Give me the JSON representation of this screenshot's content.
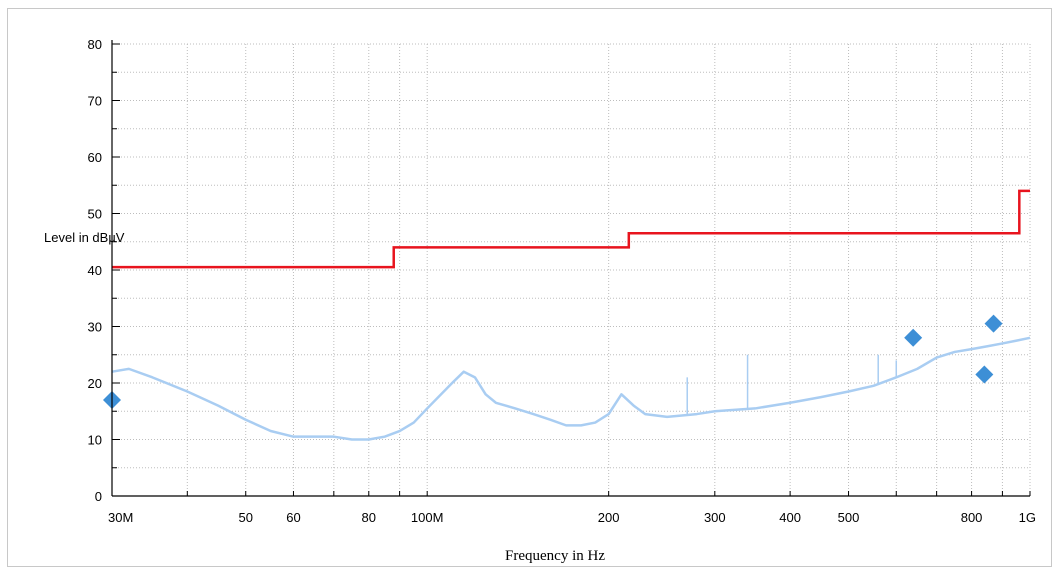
{
  "chart_data": {
    "type": "line",
    "title": "",
    "xlabel": "Frequency in Hz",
    "ylabel": "Level in dBµV",
    "x_scale": "log",
    "xlim": [
      30000000,
      1000000000
    ],
    "ylim": [
      0,
      80
    ],
    "grid": true,
    "x_ticks": [
      {
        "value": 30000000,
        "label": "30M"
      },
      {
        "value": 50000000,
        "label": "50"
      },
      {
        "value": 60000000,
        "label": "60"
      },
      {
        "value": 80000000,
        "label": "80"
      },
      {
        "value": 100000000,
        "label": "100M"
      },
      {
        "value": 200000000,
        "label": "200"
      },
      {
        "value": 300000000,
        "label": "300"
      },
      {
        "value": 400000000,
        "label": "400"
      },
      {
        "value": 500000000,
        "label": "500"
      },
      {
        "value": 800000000,
        "label": "800"
      },
      {
        "value": 1000000000,
        "label": "1G"
      }
    ],
    "y_ticks": [
      0,
      10,
      20,
      30,
      40,
      50,
      60,
      70,
      80
    ],
    "series": [
      {
        "kind": "limit",
        "color": "#e8141e",
        "x": [
          30000000,
          88000000,
          88000000,
          216000000,
          216000000,
          960000000,
          960000000,
          1000000000
        ],
        "y": [
          40.5,
          40.5,
          44,
          44,
          46.5,
          46.5,
          54,
          54
        ]
      },
      {
        "kind": "spectrum",
        "color": "#a9cdf2",
        "x": [
          30000000,
          32000000,
          35000000,
          40000000,
          45000000,
          50000000,
          55000000,
          60000000,
          65000000,
          70000000,
          75000000,
          80000000,
          85000000,
          90000000,
          95000000,
          100000000,
          110000000,
          115000000,
          120000000,
          125000000,
          130000000,
          140000000,
          150000000,
          160000000,
          170000000,
          180000000,
          190000000,
          200000000,
          210000000,
          220000000,
          230000000,
          250000000,
          280000000,
          300000000,
          350000000,
          400000000,
          450000000,
          500000000,
          550000000,
          600000000,
          650000000,
          700000000,
          750000000,
          800000000,
          850000000,
          900000000,
          950000000,
          1000000000
        ],
        "y": [
          22,
          22.5,
          21,
          18.5,
          16,
          13.5,
          11.5,
          10.5,
          10.5,
          10.5,
          10,
          10,
          10.5,
          11.5,
          13,
          15.5,
          20,
          22,
          21,
          18,
          16.5,
          15.5,
          14.5,
          13.5,
          12.5,
          12.5,
          13,
          14.5,
          18,
          16,
          14.5,
          14,
          14.5,
          15,
          15.5,
          16.5,
          17.5,
          18.5,
          19.5,
          21,
          22.5,
          24.5,
          25.5,
          26,
          26.5,
          27,
          27.5,
          28
        ]
      },
      {
        "kind": "markers",
        "color": "#3d8fd6",
        "x": [
          30000000,
          640000000,
          840000000,
          870000000
        ],
        "y": [
          17,
          28,
          21.5,
          30.5
        ]
      }
    ],
    "spikes": [
      {
        "x": 270000000,
        "y": 21
      },
      {
        "x": 340000000,
        "y": 25
      },
      {
        "x": 560000000,
        "y": 25
      },
      {
        "x": 600000000,
        "y": 24
      }
    ]
  }
}
